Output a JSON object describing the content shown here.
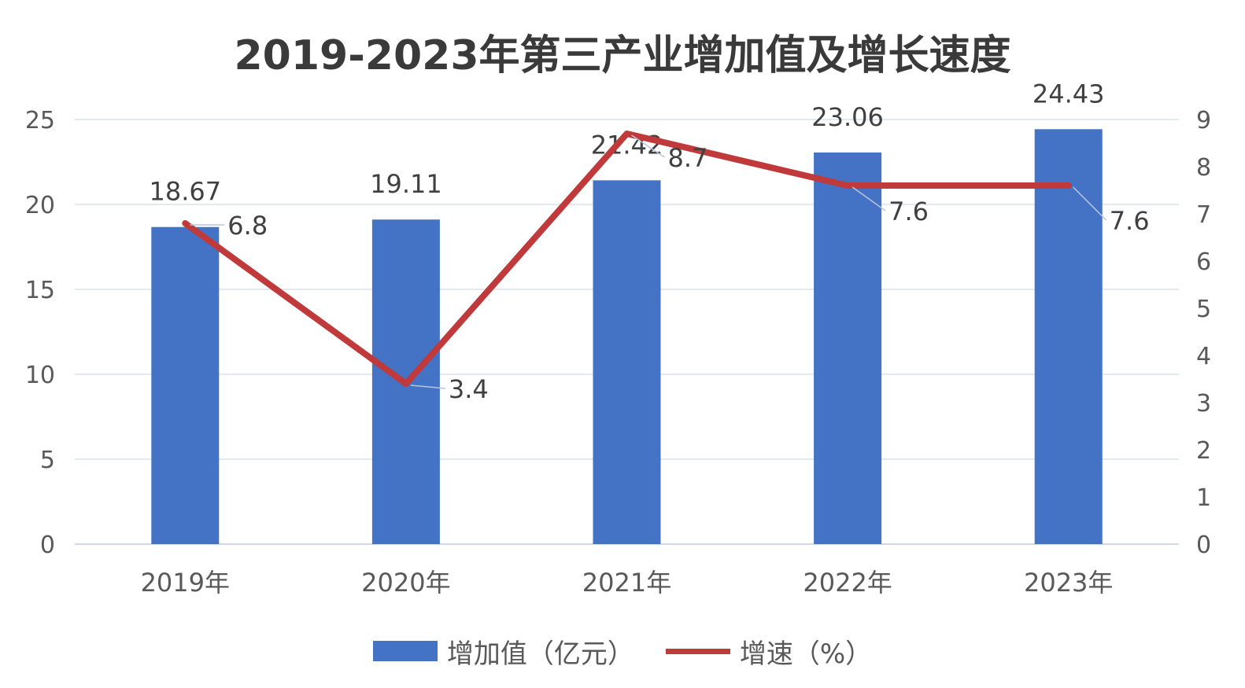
{
  "chart_data": {
    "type": "bar",
    "title": "2019-2023年第三产业增加值及增长速度",
    "categories": [
      "2019年",
      "2020年",
      "2021年",
      "2022年",
      "2023年"
    ],
    "series": [
      {
        "name": "增加值（亿元）",
        "type": "bar",
        "axis": "left",
        "values": [
          18.67,
          19.11,
          21.42,
          23.06,
          24.43
        ],
        "color": "#4472C4"
      },
      {
        "name": "增速（%）",
        "type": "line",
        "axis": "right",
        "values": [
          6.8,
          3.4,
          8.7,
          7.6,
          7.6
        ],
        "color": "#C0393B"
      }
    ],
    "y_left": {
      "min": 0,
      "max": 25,
      "ticks": [
        0,
        5,
        10,
        15,
        20,
        25
      ]
    },
    "y_right": {
      "min": 0,
      "max": 9,
      "ticks": [
        0,
        1,
        2,
        3,
        4,
        5,
        6,
        7,
        8,
        9
      ]
    },
    "grid": true,
    "legend_position": "bottom"
  }
}
